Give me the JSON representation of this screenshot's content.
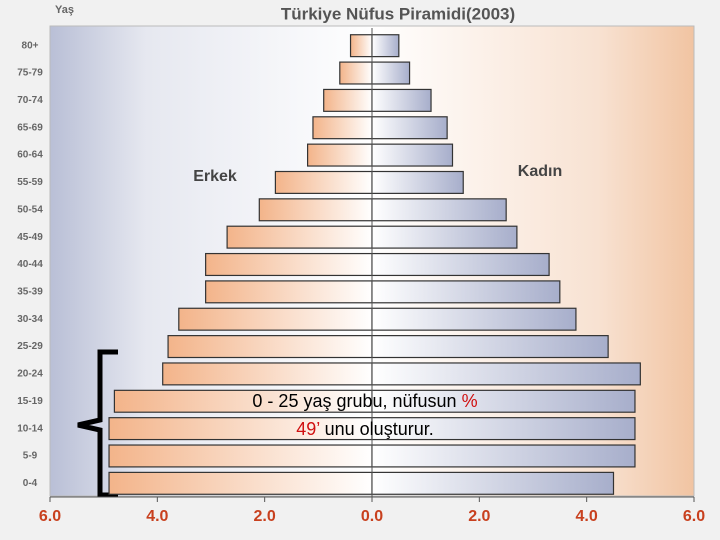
{
  "chart_data": {
    "type": "pyramid",
    "title": "Türkiye Nüfus Piramidi(2003)",
    "y_label": "Yaş",
    "categories": [
      "80+",
      "75-79",
      "70-74",
      "65-69",
      "60-64",
      "55-59",
      "50-54",
      "45-49",
      "40-44",
      "35-39",
      "30-34",
      "25-29",
      "20-24",
      "15-19",
      "10-14",
      "5-9",
      "0-4"
    ],
    "series": [
      {
        "name": "Erkek",
        "side": "left",
        "color": "#f3b48a",
        "values": [
          0.4,
          0.6,
          0.9,
          1.1,
          1.2,
          1.8,
          2.1,
          2.7,
          3.1,
          3.1,
          3.6,
          3.8,
          3.9,
          4.8,
          4.9,
          4.9,
          4.9
        ]
      },
      {
        "name": "Kadın",
        "side": "right",
        "color": "#a7aecb",
        "values": [
          0.5,
          0.7,
          1.1,
          1.4,
          1.5,
          1.7,
          2.5,
          2.7,
          3.3,
          3.5,
          3.8,
          4.4,
          5.0,
          4.9,
          4.9,
          4.9,
          4.5
        ]
      }
    ],
    "xlim": [
      -6,
      6
    ],
    "xticks": [
      {
        "value": -6,
        "label": "6.0"
      },
      {
        "value": -4,
        "label": "4.0"
      },
      {
        "value": -2,
        "label": "2.0"
      },
      {
        "value": 0,
        "label": "0.0"
      },
      {
        "value": 2,
        "label": "2.0"
      },
      {
        "value": 4,
        "label": "4.0"
      },
      {
        "value": 6,
        "label": "6.0"
      }
    ],
    "tick_color": "#c8401e",
    "annotation": [
      [
        {
          "text": "0 - 25 yaş grubu, nüfusun ",
          "color": "#000000"
        },
        {
          "text": "%",
          "color": "#d01010"
        }
      ],
      [
        {
          "text": "49’",
          "color": "#d01010"
        },
        {
          "text": " unu oluşturur.",
          "color": "#000000"
        }
      ]
    ]
  }
}
